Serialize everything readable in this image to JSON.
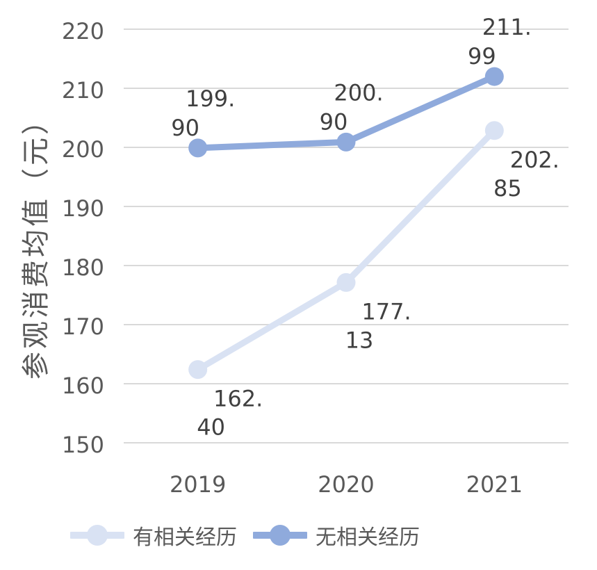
{
  "chart_data": {
    "type": "line",
    "title": "",
    "xlabel": "",
    "ylabel": "参观消费均值（元）",
    "categories": [
      "2019",
      "2020",
      "2021"
    ],
    "series": [
      {
        "name": "有相关经历",
        "values": [
          162.4,
          177.13,
          202.85
        ],
        "labels": [
          "162.40",
          "177.13",
          "202.85"
        ],
        "color": "#d9e2f3",
        "label_position": "below"
      },
      {
        "name": "无相关经历",
        "values": [
          199.9,
          200.9,
          211.99
        ],
        "labels": [
          "199.90",
          "200.90",
          "211.99"
        ],
        "color": "#8faadc",
        "label_position": "above"
      }
    ],
    "ylim": [
      150,
      220
    ],
    "ytick_step": 10,
    "yticks": [
      "150",
      "160",
      "170",
      "180",
      "190",
      "200",
      "210",
      "220"
    ],
    "grid": true,
    "legend_position": "bottom",
    "colors": {
      "grid": "#d9d9d9",
      "axis_text": "#595959",
      "data_label_text": "#404040",
      "background": "#ffffff"
    }
  }
}
